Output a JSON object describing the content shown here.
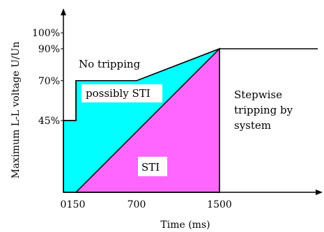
{
  "chart_data": {
    "type": "area",
    "title": "",
    "xlabel": "Time (ms)",
    "ylabel": "Maximum L-L voltage U/Un",
    "x_ticks": [
      {
        "value": 0,
        "label": "0"
      },
      {
        "value": 150,
        "label": "150"
      },
      {
        "value": 700,
        "label": "700"
      },
      {
        "value": 1500,
        "label": "1500"
      }
    ],
    "y_ticks": [
      {
        "value": 45,
        "label": "45%"
      },
      {
        "value": 70,
        "label": "70%"
      },
      {
        "value": 90,
        "label": "90%"
      },
      {
        "value": 100,
        "label": "100%"
      }
    ],
    "xlim": [
      0,
      2450
    ],
    "ylim": [
      0,
      109
    ],
    "boundary_curve": {
      "x": [
        0,
        0,
        150,
        150,
        700,
        1500,
        1500,
        2450
      ],
      "y": [
        45,
        45,
        45,
        70,
        70,
        90,
        90,
        90
      ]
    },
    "regions": [
      {
        "id": "possibly-sti",
        "label": "possibly STI",
        "color": "#00ffff",
        "polygon": [
          [
            0,
            0
          ],
          [
            0,
            45
          ],
          [
            150,
            45
          ],
          [
            150,
            70
          ],
          [
            700,
            70
          ],
          [
            1500,
            90
          ],
          [
            1500,
            0
          ]
        ]
      },
      {
        "id": "sti",
        "label": "STI",
        "color": "#ff66ff",
        "polygon": [
          [
            150,
            0
          ],
          [
            1500,
            90
          ],
          [
            1500,
            0
          ]
        ]
      }
    ],
    "annotations": [
      {
        "id": "no-tripping",
        "text": "No tripping"
      },
      {
        "id": "possibly-sti",
        "text": "possibly STI"
      },
      {
        "id": "sti",
        "text": "STI"
      },
      {
        "id": "stepwise-1",
        "text": "Stepwise"
      },
      {
        "id": "stepwise-2",
        "text": "tripping by"
      },
      {
        "id": "stepwise-3",
        "text": "system"
      }
    ],
    "grid": false,
    "legend": "none"
  }
}
